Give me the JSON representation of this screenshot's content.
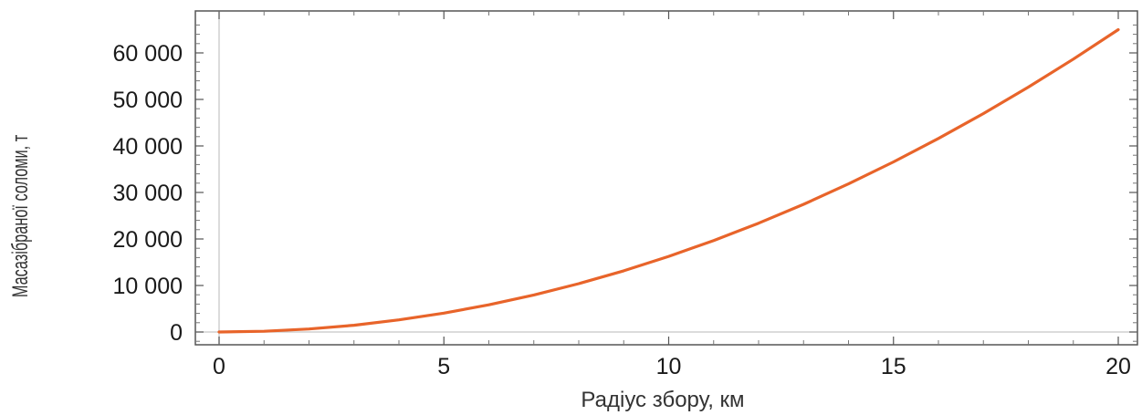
{
  "chart_data": {
    "type": "line",
    "title": "",
    "xlabel": "Радіус збору, км",
    "ylabel": "Масазібраної соломи, т",
    "xlim": [
      0,
      20
    ],
    "ylim": [
      -3000,
      68000
    ],
    "x_ticks": [
      0,
      5,
      10,
      15,
      20
    ],
    "x_tick_labels": [
      "0",
      "5",
      "10",
      "15",
      "20"
    ],
    "y_ticks": [
      0,
      10000,
      20000,
      30000,
      40000,
      50000,
      60000
    ],
    "y_tick_labels": [
      "0",
      "10 000",
      "20 000",
      "30 000",
      "40 000",
      "50 000",
      "60 000"
    ],
    "grid": false,
    "series": [
      {
        "color": "#e8642a",
        "x": [
          0,
          1,
          2,
          3,
          4,
          5,
          6,
          7,
          8,
          9,
          10,
          11,
          12,
          13,
          14,
          15,
          16,
          17,
          18,
          19,
          20
        ],
        "y": [
          0,
          160,
          650,
          1460,
          2600,
          4060,
          5850,
          7960,
          10400,
          13160,
          16250,
          19660,
          23400,
          27460,
          31850,
          36560,
          41600,
          46960,
          52650,
          58660,
          65000
        ]
      }
    ]
  }
}
